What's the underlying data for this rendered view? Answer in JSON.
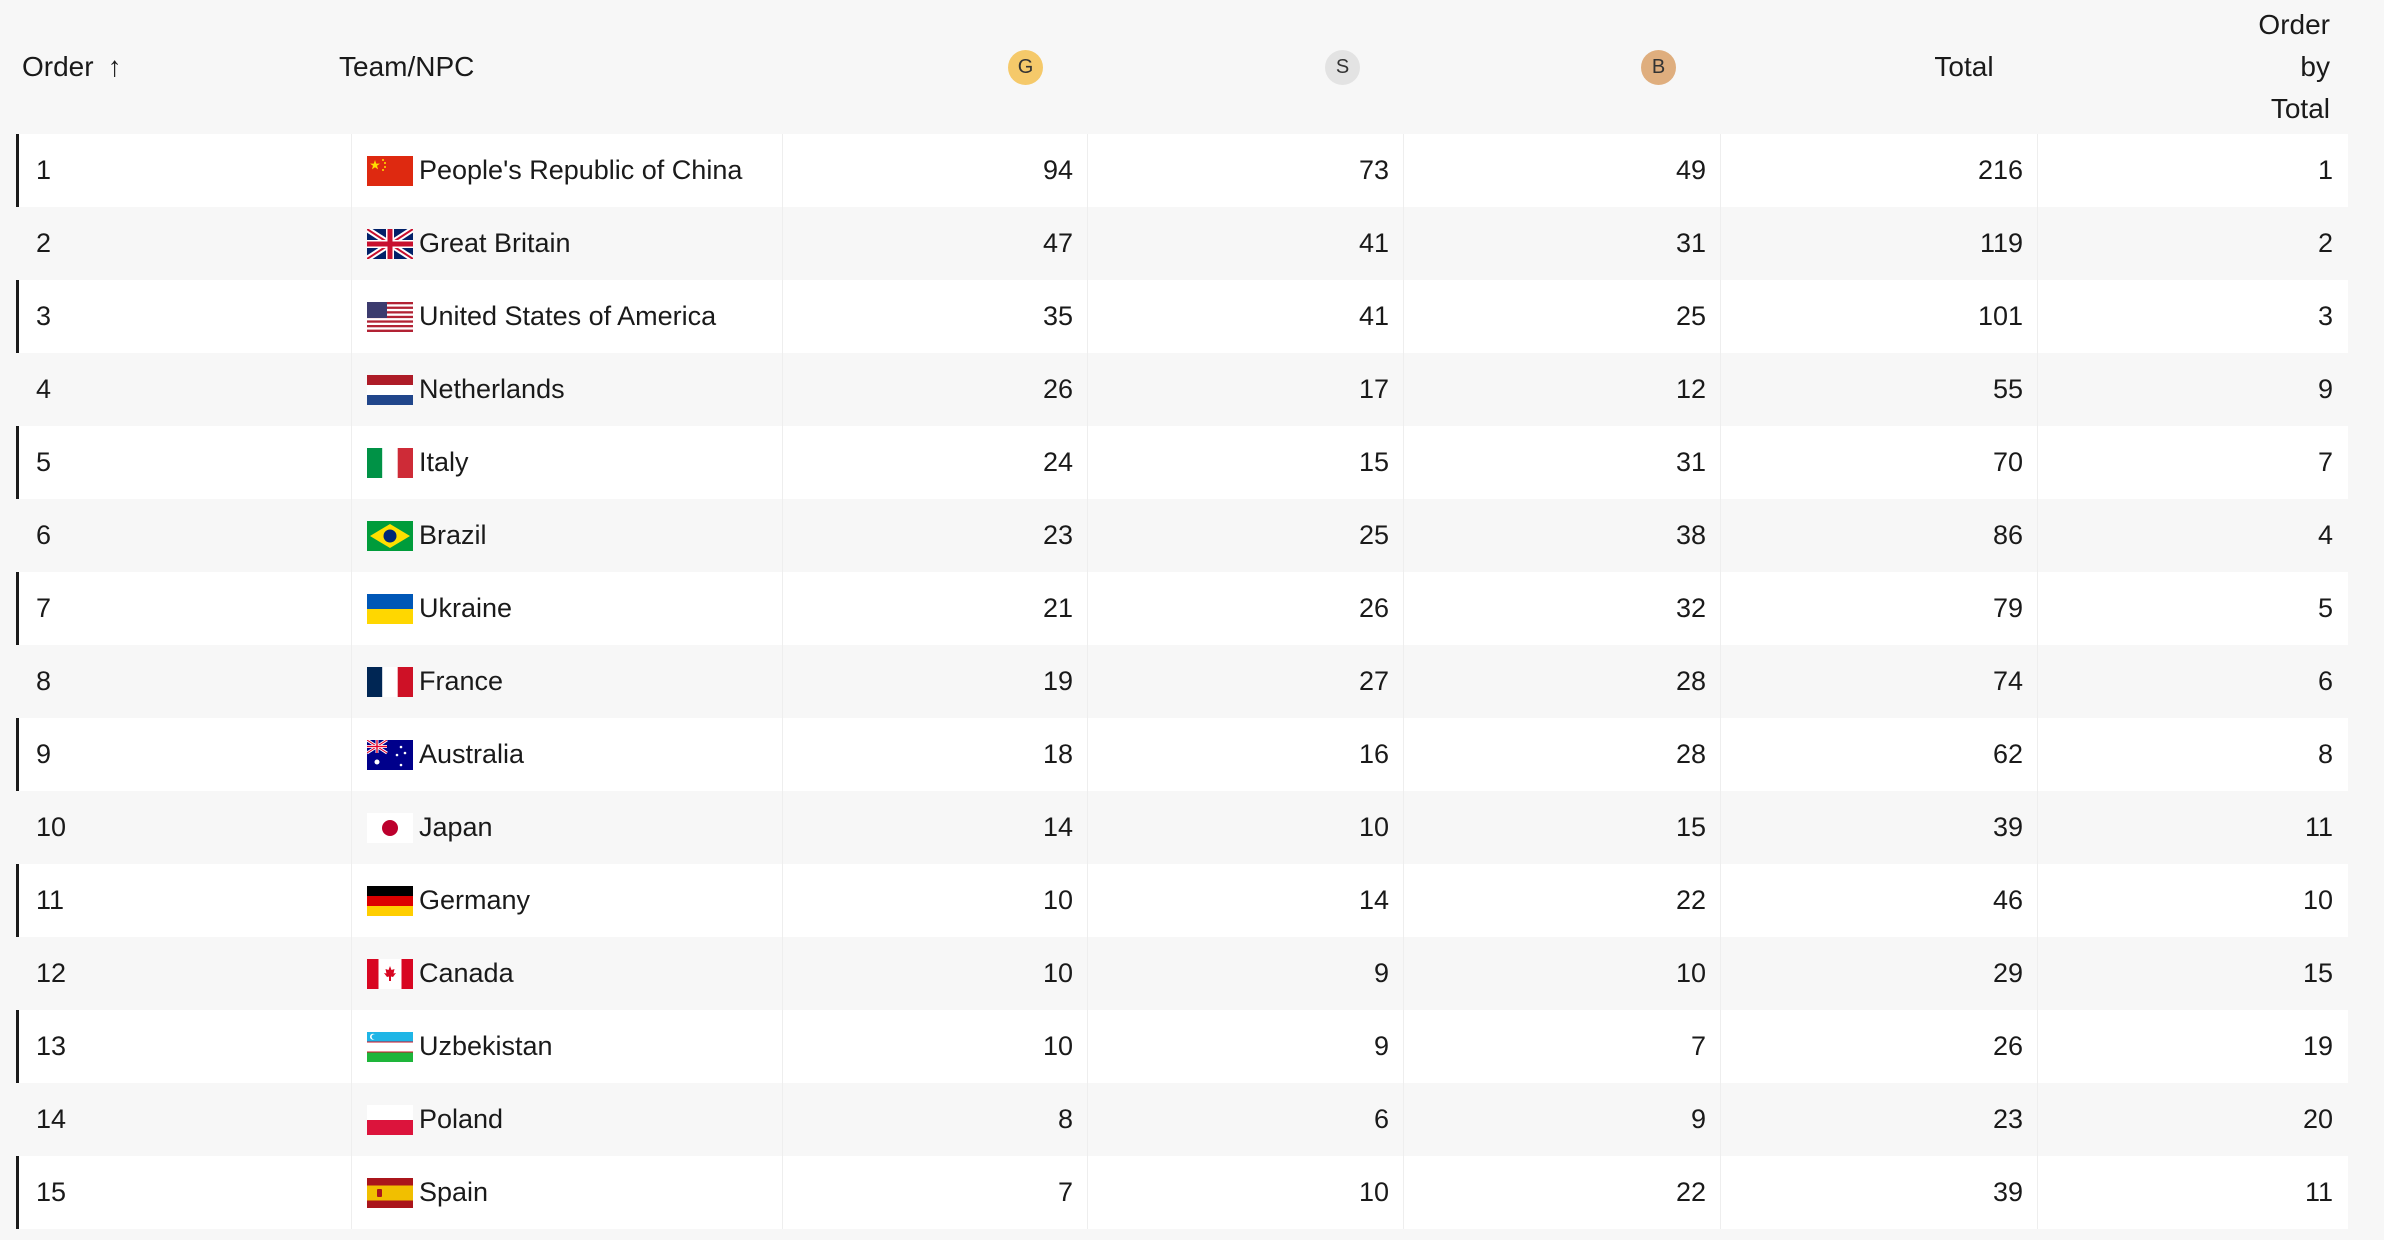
{
  "header": {
    "order_label": "Order",
    "sort_arrow": "↑",
    "team_label": "Team/NPC",
    "gold_label": "G",
    "silver_label": "S",
    "bronze_label": "B",
    "total_label": "Total",
    "order_by_total_line1": "Order",
    "order_by_total_line2": "by",
    "order_by_total_line3": "Total"
  },
  "colors": {
    "gold": "#f5c96a",
    "silver": "#e3e3e3",
    "bronze": "#dfae7e"
  },
  "rows": [
    {
      "order": "1",
      "team": "People's Republic of China",
      "flag": "china-flag-icon",
      "g": "94",
      "s": "73",
      "b": "49",
      "total": "216",
      "order_by_total": "1"
    },
    {
      "order": "2",
      "team": "Great Britain",
      "flag": "great-britain-flag-icon",
      "g": "47",
      "s": "41",
      "b": "31",
      "total": "119",
      "order_by_total": "2"
    },
    {
      "order": "3",
      "team": "United States of America",
      "flag": "usa-flag-icon",
      "g": "35",
      "s": "41",
      "b": "25",
      "total": "101",
      "order_by_total": "3"
    },
    {
      "order": "4",
      "team": "Netherlands",
      "flag": "netherlands-flag-icon",
      "g": "26",
      "s": "17",
      "b": "12",
      "total": "55",
      "order_by_total": "9"
    },
    {
      "order": "5",
      "team": "Italy",
      "flag": "italy-flag-icon",
      "g": "24",
      "s": "15",
      "b": "31",
      "total": "70",
      "order_by_total": "7"
    },
    {
      "order": "6",
      "team": "Brazil",
      "flag": "brazil-flag-icon",
      "g": "23",
      "s": "25",
      "b": "38",
      "total": "86",
      "order_by_total": "4"
    },
    {
      "order": "7",
      "team": "Ukraine",
      "flag": "ukraine-flag-icon",
      "g": "21",
      "s": "26",
      "b": "32",
      "total": "79",
      "order_by_total": "5"
    },
    {
      "order": "8",
      "team": "France",
      "flag": "france-flag-icon",
      "g": "19",
      "s": "27",
      "b": "28",
      "total": "74",
      "order_by_total": "6"
    },
    {
      "order": "9",
      "team": "Australia",
      "flag": "australia-flag-icon",
      "g": "18",
      "s": "16",
      "b": "28",
      "total": "62",
      "order_by_total": "8"
    },
    {
      "order": "10",
      "team": "Japan",
      "flag": "japan-flag-icon",
      "g": "14",
      "s": "10",
      "b": "15",
      "total": "39",
      "order_by_total": "11"
    },
    {
      "order": "11",
      "team": "Germany",
      "flag": "germany-flag-icon",
      "g": "10",
      "s": "14",
      "b": "22",
      "total": "46",
      "order_by_total": "10"
    },
    {
      "order": "12",
      "team": "Canada",
      "flag": "canada-flag-icon",
      "g": "10",
      "s": "9",
      "b": "10",
      "total": "29",
      "order_by_total": "15"
    },
    {
      "order": "13",
      "team": "Uzbekistan",
      "flag": "uzbekistan-flag-icon",
      "g": "10",
      "s": "9",
      "b": "7",
      "total": "26",
      "order_by_total": "19"
    },
    {
      "order": "14",
      "team": "Poland",
      "flag": "poland-flag-icon",
      "g": "8",
      "s": "6",
      "b": "9",
      "total": "23",
      "order_by_total": "20"
    },
    {
      "order": "15",
      "team": "Spain",
      "flag": "spain-flag-icon",
      "g": "7",
      "s": "10",
      "b": "22",
      "total": "39",
      "order_by_total": "11"
    }
  ]
}
